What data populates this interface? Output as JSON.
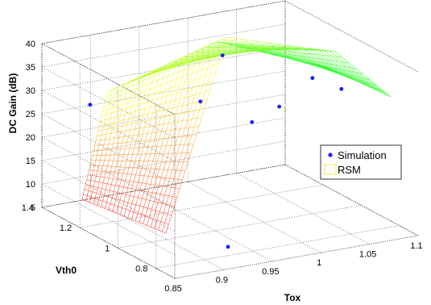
{
  "chart_data": {
    "type": "surface",
    "title": "",
    "xlabel": "Tox",
    "ylabel": "Vth0",
    "zlabel": "DC Gain (dB)",
    "xlim": [
      0.85,
      1.1
    ],
    "ylim": [
      0.7,
      1.4
    ],
    "zlim": [
      5,
      40
    ],
    "x_ticks": [
      "0.85",
      "0.9",
      "0.95",
      "1",
      "1.05",
      "1.1"
    ],
    "y_ticks": [
      "0.8",
      "1",
      "1.2",
      "1.4"
    ],
    "z_ticks": [
      "5",
      "10",
      "15",
      "20",
      "25",
      "30",
      "35",
      "40"
    ],
    "grid": true,
    "legend": {
      "position": "right",
      "entries": [
        "Simulation",
        "RSM"
      ]
    },
    "series": [
      {
        "name": "Simulation",
        "style": "markers",
        "color": "#1a1aff",
        "points": [
          {
            "x": 0.88,
            "y": 1.3,
            "z": 28
          },
          {
            "x": 0.93,
            "y": 0.83,
            "z": 6
          },
          {
            "x": 0.97,
            "y": 1.18,
            "z": 28
          },
          {
            "x": 0.98,
            "y": 0.96,
            "z": 28
          },
          {
            "x": 1.01,
            "y": 0.97,
            "z": 30
          },
          {
            "x": 1.05,
            "y": 1.0,
            "z": 34
          },
          {
            "x": 1.07,
            "y": 0.95,
            "z": 32
          },
          {
            "x": 1.02,
            "y": 1.32,
            "z": 33
          }
        ]
      },
      {
        "name": "RSM",
        "style": "surface-mesh",
        "colormap": [
          "#ff3333",
          "#ffff33",
          "#33ff33"
        ]
      }
    ]
  }
}
